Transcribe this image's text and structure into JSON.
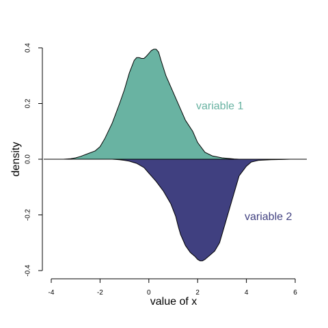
{
  "chart_data": {
    "type": "area",
    "title": "",
    "xlabel": "value of x",
    "ylabel": "density",
    "xlim": [
      -4,
      6
    ],
    "ylim": [
      -0.4,
      0.4
    ],
    "x_ticks": [
      -4,
      -2,
      0,
      2,
      4,
      6
    ],
    "y_ticks": [
      -0.4,
      -0.2,
      0.0,
      0.2,
      0.4
    ],
    "x_tick_labels": [
      "-4",
      "-2",
      "0",
      "2",
      "4",
      "6"
    ],
    "y_tick_labels": [
      "-0.4",
      "-0.2",
      "0.0",
      "0.2",
      "0.4"
    ],
    "grid": false,
    "baseline": 0,
    "series": [
      {
        "name": "variable 1",
        "color": "#69b3a2",
        "direction": "up",
        "x": [
          -3.5,
          -3.2,
          -3.0,
          -2.8,
          -2.5,
          -2.2,
          -2.0,
          -1.8,
          -1.5,
          -1.2,
          -1.0,
          -0.8,
          -0.6,
          -0.5,
          -0.4,
          -0.3,
          -0.2,
          -0.1,
          0.0,
          0.1,
          0.2,
          0.3,
          0.4,
          0.5,
          0.7,
          1.0,
          1.3,
          1.5,
          1.8,
          2.0,
          2.3,
          2.6,
          3.0,
          3.5,
          3.7
        ],
        "y": [
          0.0,
          0.002,
          0.005,
          0.01,
          0.02,
          0.03,
          0.045,
          0.075,
          0.13,
          0.2,
          0.25,
          0.31,
          0.355,
          0.365,
          0.365,
          0.362,
          0.362,
          0.37,
          0.38,
          0.39,
          0.395,
          0.395,
          0.385,
          0.355,
          0.3,
          0.24,
          0.18,
          0.14,
          0.1,
          0.06,
          0.025,
          0.012,
          0.005,
          0.001,
          0.0
        ]
      },
      {
        "name": "variable 2",
        "color": "#404080",
        "direction": "down",
        "x": [
          -1.5,
          -1.2,
          -1.0,
          -0.8,
          -0.5,
          -0.2,
          0.0,
          0.3,
          0.6,
          0.9,
          1.1,
          1.2,
          1.3,
          1.5,
          1.7,
          1.9,
          2.0,
          2.1,
          2.2,
          2.3,
          2.5,
          2.7,
          2.9,
          3.1,
          3.3,
          3.5,
          3.7,
          4.0,
          4.2,
          4.5,
          5.0,
          5.5,
          5.8
        ],
        "y": [
          0.0,
          0.002,
          0.004,
          0.007,
          0.015,
          0.03,
          0.05,
          0.08,
          0.115,
          0.16,
          0.205,
          0.24,
          0.27,
          0.31,
          0.335,
          0.35,
          0.36,
          0.365,
          0.365,
          0.36,
          0.345,
          0.33,
          0.3,
          0.24,
          0.18,
          0.12,
          0.06,
          0.025,
          0.01,
          0.004,
          0.002,
          0.001,
          0.0
        ]
      }
    ]
  }
}
